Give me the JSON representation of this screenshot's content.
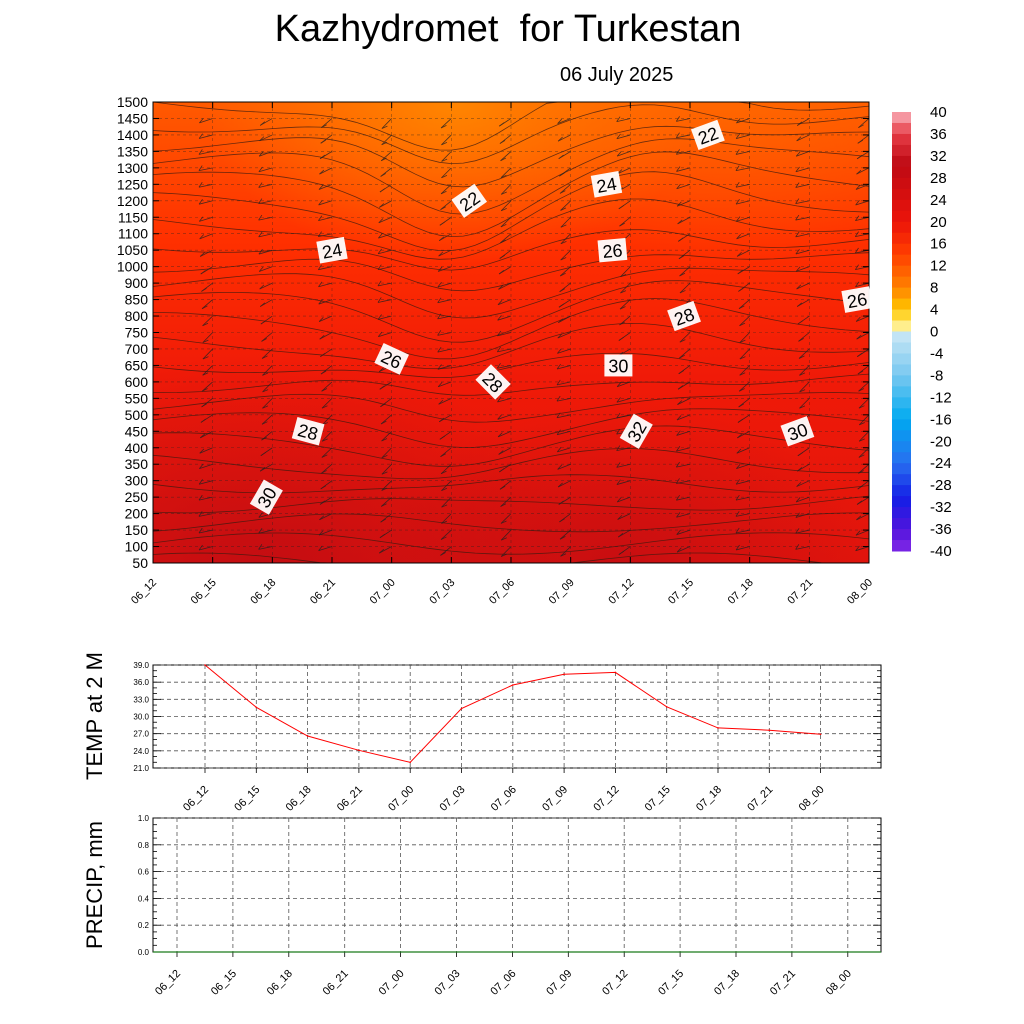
{
  "title": "Kazhydromet  for Turkestan",
  "subtitle": "06 July 2025",
  "colors": {
    "temp_line": "#ff0000",
    "precip_line": "#1a7a1a",
    "background": "#ffffff"
  },
  "chart_data": [
    {
      "type": "heatmap",
      "name": "vertical-cross-section",
      "x_ticks": [
        "06_12",
        "06_15",
        "06_18",
        "06_21",
        "07_00",
        "07_03",
        "07_06",
        "07_09",
        "07_12",
        "07_15",
        "07_18",
        "07_21",
        "08_00"
      ],
      "y_ticks": [
        50,
        100,
        150,
        200,
        250,
        300,
        350,
        400,
        450,
        500,
        550,
        600,
        650,
        700,
        750,
        800,
        850,
        900,
        1000,
        1050,
        1100,
        1150,
        1200,
        1250,
        1300,
        1350,
        1400,
        1450,
        1500
      ],
      "contour_labels": [
        {
          "text": "22",
          "x_index": 9.3,
          "y_value": 1400
        },
        {
          "text": "22",
          "x_index": 5.3,
          "y_value": 1200
        },
        {
          "text": "24",
          "x_index": 7.6,
          "y_value": 1250
        },
        {
          "text": "24",
          "x_index": 3.0,
          "y_value": 1050
        },
        {
          "text": "26",
          "x_index": 7.7,
          "y_value": 1050
        },
        {
          "text": "26",
          "x_index": 11.8,
          "y_value": 850
        },
        {
          "text": "28",
          "x_index": 8.9,
          "y_value": 800
        },
        {
          "text": "26",
          "x_index": 4.0,
          "y_value": 670
        },
        {
          "text": "30",
          "x_index": 7.8,
          "y_value": 650
        },
        {
          "text": "28",
          "x_index": 5.7,
          "y_value": 600
        },
        {
          "text": "32",
          "x_index": 8.1,
          "y_value": 450
        },
        {
          "text": "28",
          "x_index": 2.6,
          "y_value": 450
        },
        {
          "text": "30",
          "x_index": 10.8,
          "y_value": 450
        },
        {
          "text": "30",
          "x_index": 1.9,
          "y_value": 250
        }
      ],
      "colorbar": {
        "labels": [
          "40",
          "36",
          "32",
          "28",
          "24",
          "20",
          "16",
          "12",
          "8",
          "4",
          "0",
          "-4",
          "-8",
          "-12",
          "-16",
          "-20",
          "-24",
          "-28",
          "-32",
          "-36",
          "-40"
        ]
      }
    },
    {
      "type": "line",
      "name": "temp-2m",
      "ylabel": "TEMP at 2 M",
      "ylim": [
        21.0,
        39.0
      ],
      "y_ticks": [
        "39.0",
        "36.0",
        "33.0",
        "30.0",
        "27.0",
        "24.0",
        "21.0"
      ],
      "categories": [
        "06_12",
        "06_15",
        "06_18",
        "06_21",
        "07_00",
        "07_03",
        "07_06",
        "07_09",
        "07_12",
        "07_15",
        "07_18",
        "07_21",
        "08_00"
      ],
      "values": [
        39.0,
        31.6,
        26.6,
        24.1,
        22.0,
        31.4,
        35.5,
        37.4,
        37.7,
        31.7,
        28.0,
        27.6,
        26.9
      ]
    },
    {
      "type": "line",
      "name": "precip",
      "ylabel": "PRECIP, mm",
      "ylim": [
        0.0,
        1.0
      ],
      "y_ticks": [
        "1.0",
        "0.8",
        "0.6",
        "0.4",
        "0.2",
        "0.0"
      ],
      "categories": [
        "06_12",
        "06_15",
        "06_18",
        "06_21",
        "07_00",
        "07_03",
        "07_06",
        "07_09",
        "07_12",
        "07_15",
        "07_18",
        "07_21",
        "08_00"
      ],
      "values": [
        0,
        0,
        0,
        0,
        0,
        0,
        0,
        0,
        0,
        0,
        0,
        0,
        0
      ]
    }
  ]
}
